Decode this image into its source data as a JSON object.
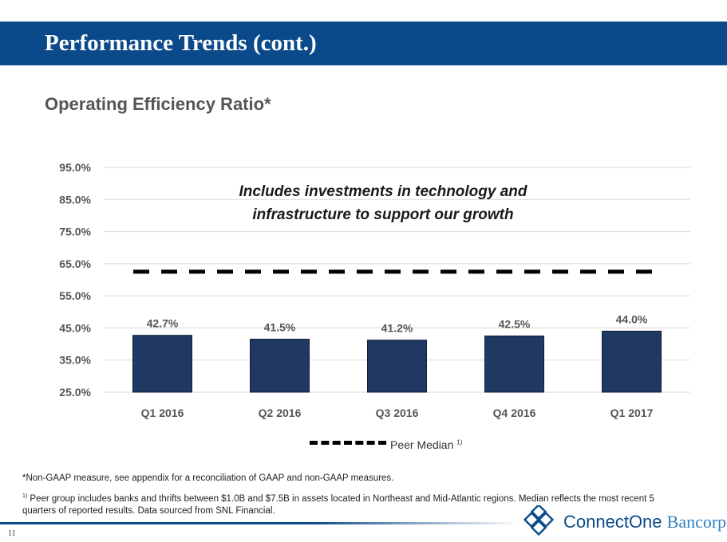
{
  "header": {
    "title": "Performance Trends (cont.)"
  },
  "subtitle": "Operating Efficiency Ratio*",
  "annotation": {
    "line1": "Includes investments in technology and",
    "line2": "infrastructure to support our growth"
  },
  "chart_data": {
    "type": "bar",
    "categories": [
      "Q1 2016",
      "Q2 2016",
      "Q3 2016",
      "Q4 2016",
      "Q1 2017"
    ],
    "values": [
      42.7,
      41.5,
      41.2,
      42.5,
      44.0
    ],
    "value_labels": [
      "42.7%",
      "41.5%",
      "41.2%",
      "42.5%",
      "44.0%"
    ],
    "yticks": [
      25.0,
      35.0,
      45.0,
      55.0,
      65.0,
      75.0,
      85.0,
      95.0
    ],
    "ytick_labels": [
      "25.0%",
      "35.0%",
      "45.0%",
      "55.0%",
      "65.0%",
      "75.0%",
      "85.0%",
      "95.0%"
    ],
    "ylim": [
      25,
      95
    ],
    "grid": true,
    "reference_line": {
      "label": "Peer Median",
      "footnote_marker": "1)",
      "value": 62.5,
      "style": "dashed",
      "color": "#000000"
    },
    "legend_position": "bottom-center",
    "bar_color": "#1f3864"
  },
  "footnotes": {
    "note1": "*Non-GAAP measure, see appendix for a reconciliation of GAAP and non-GAAP measures.",
    "note2_marker": "1)",
    "note2": " Peer group includes banks and thrifts between $1.0B and $7.5B in assets located in Northeast and Mid-Atlantic regions.  Median reflects the most recent 5 quarters of reported results. Data sourced from SNL Financial."
  },
  "page_number": "11",
  "logo": {
    "word1": "ConnectOne",
    "word2": "Bancorp"
  },
  "colors": {
    "header_bg": "#0b4a8a",
    "bar": "#1f3864",
    "logo_blue": "#0b4a8a",
    "logo_light": "#2f7fbf"
  }
}
